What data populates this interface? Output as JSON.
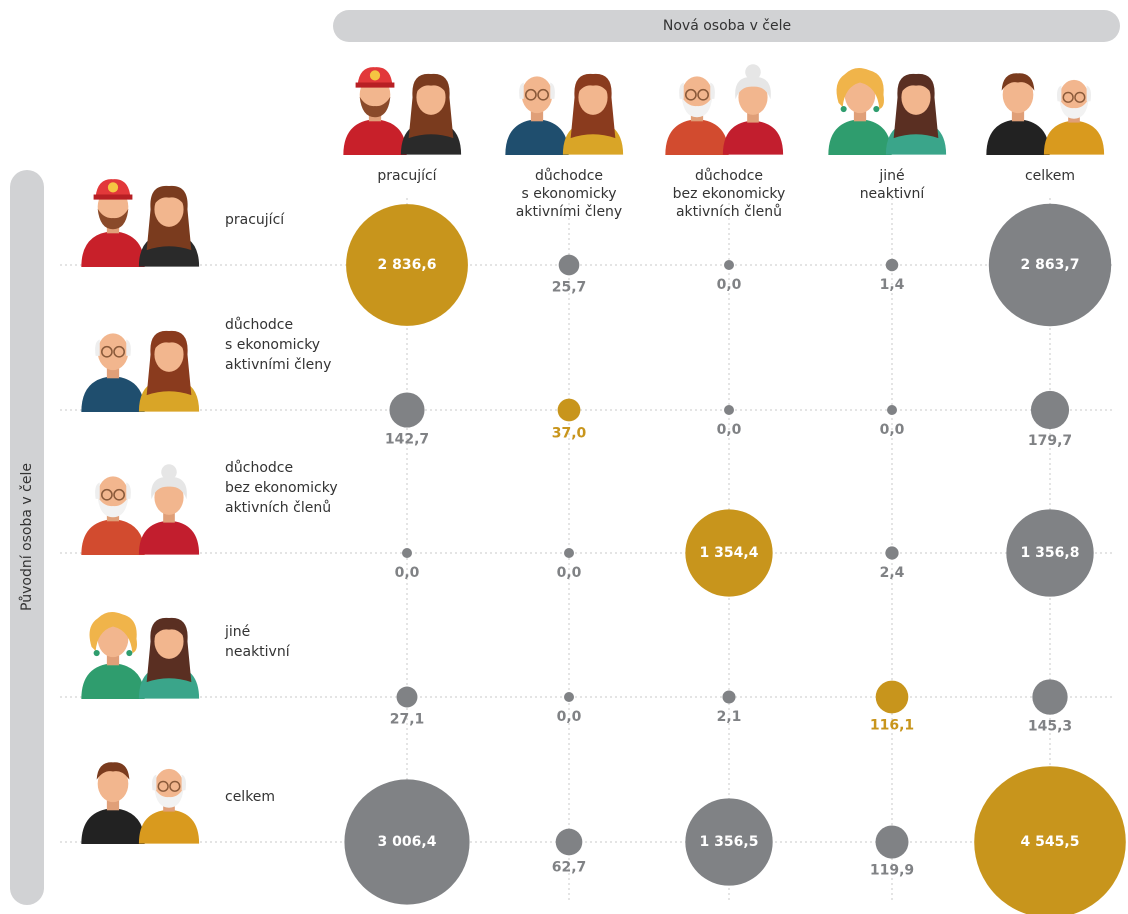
{
  "chart_data": {
    "type": "bubble",
    "title": "Nová osoba v čele",
    "y_title": "Původní osoba v čele",
    "columns": [
      [
        "pracující"
      ],
      [
        "důchodce",
        "s ekonomicky",
        "aktivními členy"
      ],
      [
        "důchodce",
        "bez ekonomicky",
        "aktivních členů"
      ],
      [
        "jiné",
        "neaktivní"
      ],
      [
        "celkem"
      ]
    ],
    "series": [
      {
        "name": [
          "pracující"
        ],
        "values": [
          2836.6,
          25.7,
          0.0,
          1.4,
          2863.7
        ],
        "value_labels": [
          "2 836,6",
          "25,7",
          "0,0",
          "1,4",
          "2 863,7"
        ],
        "colors": [
          "#c8951c",
          "#808285",
          "#808285",
          "#808285",
          "#808285"
        ]
      },
      {
        "name": [
          "důchodce",
          "s ekonomicky",
          "aktivními členy"
        ],
        "values": [
          142.7,
          37.0,
          0.0,
          0.0,
          179.7
        ],
        "value_labels": [
          "142,7",
          "37,0",
          "0,0",
          "0,0",
          "179,7"
        ],
        "colors": [
          "#808285",
          "#c8951c",
          "#808285",
          "#808285",
          "#808285"
        ]
      },
      {
        "name": [
          "důchodce",
          "bez ekonomicky",
          "aktivních členů"
        ],
        "values": [
          0.0,
          0.0,
          1354.4,
          2.4,
          1356.8
        ],
        "value_labels": [
          "0,0",
          "0,0",
          "1 354,4",
          "2,4",
          "1 356,8"
        ],
        "colors": [
          "#808285",
          "#808285",
          "#c8951c",
          "#808285",
          "#808285"
        ]
      },
      {
        "name": [
          "jiné",
          "neaktivní"
        ],
        "values": [
          27.1,
          0.0,
          2.1,
          116.1,
          145.3
        ],
        "value_labels": [
          "27,1",
          "0,0",
          "2,1",
          "116,1",
          "145,3"
        ],
        "colors": [
          "#808285",
          "#808285",
          "#808285",
          "#c8951c",
          "#808285"
        ]
      },
      {
        "name": [
          "celkem"
        ],
        "values": [
          3006.4,
          62.7,
          1356.5,
          119.9,
          4545.5
        ],
        "value_labels": [
          "3 006,4",
          "62,7",
          "1 356,5",
          "119,9",
          "4 545,5"
        ],
        "colors": [
          "#808285",
          "#808285",
          "#808285",
          "#808285",
          "#c8951c"
        ]
      }
    ]
  }
}
